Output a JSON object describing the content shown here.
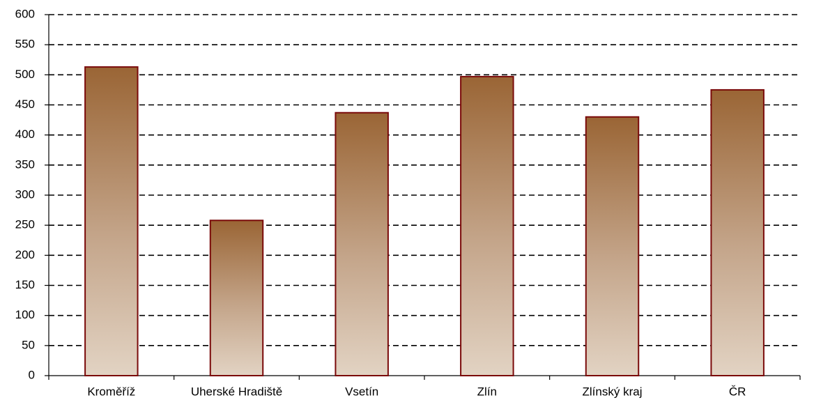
{
  "chart_data": {
    "type": "bar",
    "categories": [
      "Kroměříž",
      "Uherské Hradiště",
      "Vsetín",
      "Zlín",
      "Zlínský kraj",
      "ČR"
    ],
    "values": [
      513,
      258,
      437,
      497,
      430,
      475
    ],
    "color": "#9a6535",
    "ylim": [
      0,
      600
    ],
    "yticks": [
      0,
      50,
      100,
      150,
      200,
      250,
      300,
      350,
      400,
      450,
      500,
      550,
      600
    ],
    "grid": true
  }
}
